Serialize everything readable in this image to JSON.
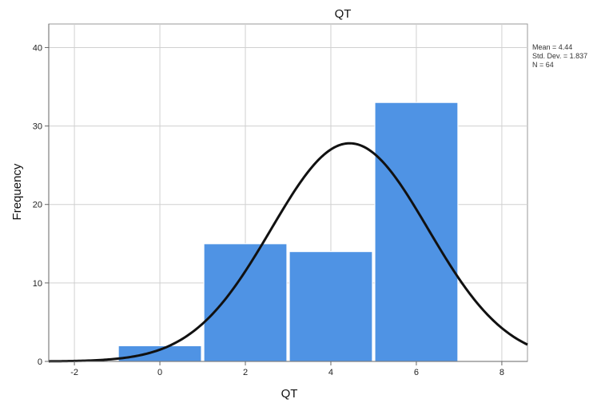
{
  "chart_data": {
    "type": "bar",
    "subtype": "histogram",
    "title": "QT",
    "xlabel": "QT",
    "ylabel": "Frequency",
    "xlim": [
      -2.6,
      8.6
    ],
    "ylim": [
      0,
      43
    ],
    "x_ticks": [
      -2,
      0,
      2,
      4,
      6,
      8
    ],
    "y_ticks": [
      0,
      10,
      20,
      30,
      40
    ],
    "grid": true,
    "bins": [
      {
        "start": -1,
        "end": 1,
        "value": 2
      },
      {
        "start": 1,
        "end": 3,
        "value": 15
      },
      {
        "start": 3,
        "end": 5,
        "value": 14
      },
      {
        "start": 5,
        "end": 7,
        "value": 33
      }
    ],
    "bar_color": "#4f93e4",
    "curve_color": "#111111",
    "normal_curve": {
      "mean": 4.44,
      "std_dev": 1.837,
      "n": 64
    },
    "stats_lines": [
      "Mean = 4.44",
      "Std. Dev. = 1.837",
      "N = 64"
    ],
    "legend_position": "top-right"
  }
}
